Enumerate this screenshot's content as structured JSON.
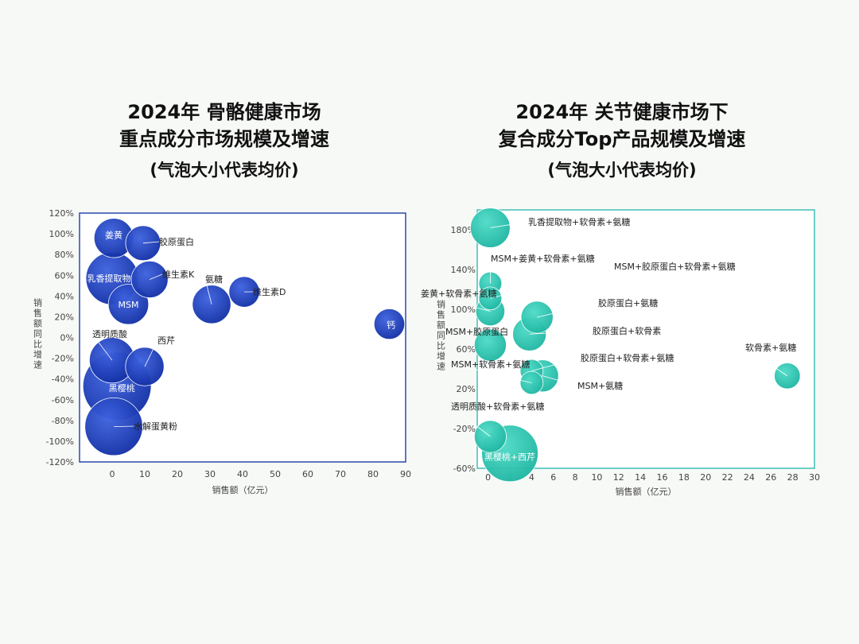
{
  "left_title": {
    "line1": "2024年 骨骼健康市场",
    "line2": "重点成分市场规模及增速",
    "line3": "(气泡大小代表均价)"
  },
  "right_title": {
    "line1": "2024年 关节健康市场下",
    "line2": "复合成分Top产品规模及增速",
    "line3": "(气泡大小代表均价)"
  },
  "colors": {
    "left_bubble": "#1f3fbf",
    "right_bubble": "#2cc7b3",
    "left_frame": "#2b4aa8",
    "right_frame": "#3fbfb5"
  },
  "chart_data": [
    {
      "type": "scatter",
      "title": "2024年 骨骼健康市场 重点成分市场规模及增速 (气泡大小代表均价)",
      "xlabel": "销售额（亿元）",
      "ylabel": "销售额同比增速",
      "xlim": [
        -10,
        90
      ],
      "ylim": [
        -120,
        120
      ],
      "xticks": [
        "0",
        "10",
        "20",
        "30",
        "40",
        "50",
        "60",
        "70",
        "80",
        "90"
      ],
      "yticks": [
        "120%",
        "100%",
        "80%",
        "60%",
        "40%",
        "20%",
        "0%",
        "-20%",
        "-40%",
        "-60%",
        "-80%",
        "-100%",
        "-120%"
      ],
      "points": [
        {
          "label": "姜黄",
          "x": 0.5,
          "y": 96,
          "size": 4.5
        },
        {
          "label": "胶原蛋白",
          "x": 9.5,
          "y": 91,
          "size": 4
        },
        {
          "label": "乳香提取物",
          "x": 0,
          "y": 57,
          "size": 6
        },
        {
          "label": "维生素K",
          "x": 11.5,
          "y": 56,
          "size": 4.2
        },
        {
          "label": "MSM",
          "x": 5,
          "y": 32,
          "size": 4.6
        },
        {
          "label": "氨糖",
          "x": 30.5,
          "y": 32,
          "size": 4.4
        },
        {
          "label": "维生素D",
          "x": 40.5,
          "y": 44,
          "size": 3.5
        },
        {
          "label": "钙",
          "x": 85,
          "y": 13,
          "size": 3.5
        },
        {
          "label": "透明质酸",
          "x": 0,
          "y": -22,
          "size": 5.2
        },
        {
          "label": "西芹",
          "x": 10,
          "y": -28,
          "size": 4.4
        },
        {
          "label": "黑樱桃",
          "x": 1.5,
          "y": -47,
          "size": 7.8
        },
        {
          "label": "水解蛋黄粉",
          "x": 0.5,
          "y": -86,
          "size": 6.6
        }
      ]
    },
    {
      "type": "scatter",
      "title": "2024年 关节健康市场下 复合成分Top产品规模及增速 (气泡大小代表均价)",
      "xlabel": "销售额（亿元）",
      "ylabel": "销售额同比增速",
      "xlim": [
        -1,
        30
      ],
      "ylim": [
        -60,
        200
      ],
      "xticks": [
        "0",
        "2",
        "4",
        "6",
        "8",
        "10",
        "12",
        "14",
        "16",
        "18",
        "20",
        "22",
        "24",
        "26",
        "28",
        "30"
      ],
      "yticks": [
        "180%",
        "140%",
        "100%",
        "60%",
        "20%",
        "-20%",
        "-60%"
      ],
      "points": [
        {
          "label": "乳香提取物+软骨素+氨糖",
          "x": 0.2,
          "y": 182,
          "size": 5.2
        },
        {
          "label": "MSM+姜黄+软骨素+氨糖",
          "x": 0.2,
          "y": 126,
          "size": 3
        },
        {
          "label": "MSM+胶原蛋白+软骨素+氨糖",
          "x": 0.2,
          "y": 111,
          "size": 3
        },
        {
          "label": "姜黄+软骨素+氨糖",
          "x": 0.2,
          "y": 98,
          "size": 3.8
        },
        {
          "label": "胶原蛋白+氨糖",
          "x": 4.5,
          "y": 92,
          "size": 4.2
        },
        {
          "label": "胶原蛋白+软骨素",
          "x": 3.8,
          "y": 75,
          "size": 4.4
        },
        {
          "label": "MSM+胶原蛋白",
          "x": 0.2,
          "y": 64,
          "size": 4.2
        },
        {
          "label": "胶原蛋白+软骨素+氨糖",
          "x": 4,
          "y": 38,
          "size": 3
        },
        {
          "label": "MSM+软骨素+氨糖",
          "x": 4,
          "y": 26,
          "size": 3
        },
        {
          "label": "MSM+氨糖",
          "x": 5,
          "y": 33,
          "size": 4.2
        },
        {
          "label": "软骨素+氨糖",
          "x": 27.5,
          "y": 33,
          "size": 3.4
        },
        {
          "label": "透明质酸+软骨素+氨糖",
          "x": 0.2,
          "y": -28,
          "size": 4.2
        },
        {
          "label": "黑樱桃+西芹",
          "x": 2,
          "y": -45,
          "size": 7.4
        }
      ]
    }
  ]
}
